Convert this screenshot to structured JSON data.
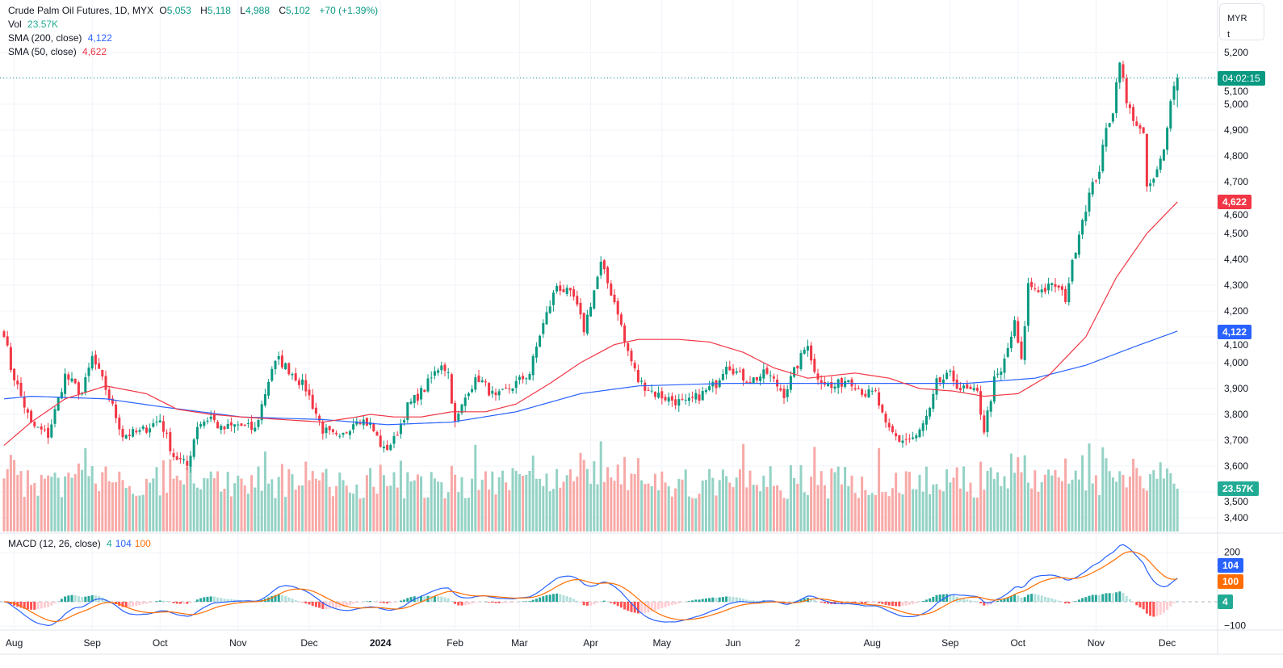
{
  "header": {
    "symbol": "Crude Palm Oil Futures, 1D, MYX",
    "open_label": "O",
    "open": "5,053",
    "high_label": "H",
    "high": "5,118",
    "low_label": "L",
    "low": "4,988",
    "close_label": "C",
    "close": "5,102",
    "change": "+70 (+1.39%)"
  },
  "volume": {
    "label": "Vol",
    "value": "23.57K"
  },
  "sma200": {
    "label": "SMA (200, close)",
    "value": "4,122"
  },
  "sma50": {
    "label": "SMA (50, close)",
    "value": "4,622"
  },
  "macd": {
    "label": "MACD (12, 26, close)",
    "hist": "4",
    "macd": "104",
    "signal": "100"
  },
  "currency": {
    "code": "MYR",
    "unit": "t"
  },
  "countdown": "04:02:15",
  "colors": {
    "up": "#089981",
    "down": "#f23645",
    "sma200": "#2962ff",
    "sma50": "#f23645",
    "macd": "#2962ff",
    "signal": "#ff6d00"
  },
  "chart_data": {
    "type": "candlestick",
    "title": "Crude Palm Oil Futures, 1D, MYX",
    "ylim": [
      3350,
      5300
    ],
    "y_ticks": [
      3400,
      3500,
      3600,
      3700,
      3800,
      3900,
      4000,
      4100,
      4200,
      4300,
      4400,
      4500,
      4600,
      4700,
      4800,
      4900,
      5000,
      5100,
      5200
    ],
    "macd_ticks": [
      200,
      -100
    ],
    "x_ticks": [
      {
        "day": 3,
        "label": "Aug"
      },
      {
        "day": 26,
        "label": "Sep"
      },
      {
        "day": 46,
        "label": "Oct"
      },
      {
        "day": 69,
        "label": "Nov"
      },
      {
        "day": 90,
        "label": "Dec"
      },
      {
        "day": 111,
        "label": "2024",
        "bold": true
      },
      {
        "day": 133,
        "label": "Feb"
      },
      {
        "day": 152,
        "label": "Mar"
      },
      {
        "day": 173,
        "label": "Apr"
      },
      {
        "day": 194,
        "label": "May"
      },
      {
        "day": 215,
        "label": "Jun"
      },
      {
        "day": 234,
        "label": "2"
      },
      {
        "day": 256,
        "label": "Aug"
      },
      {
        "day": 279,
        "label": "Sep"
      },
      {
        "day": 299,
        "label": "Oct"
      },
      {
        "day": 322,
        "label": "Nov"
      },
      {
        "day": 343,
        "label": "Dec"
      }
    ],
    "close_anchors": [
      [
        0,
        4120
      ],
      [
        2,
        3980
      ],
      [
        8,
        3760
      ],
      [
        13,
        3720
      ],
      [
        18,
        3950
      ],
      [
        23,
        3880
      ],
      [
        26,
        4020
      ],
      [
        30,
        3900
      ],
      [
        35,
        3720
      ],
      [
        40,
        3730
      ],
      [
        46,
        3780
      ],
      [
        50,
        3640
      ],
      [
        54,
        3600
      ],
      [
        57,
        3760
      ],
      [
        61,
        3790
      ],
      [
        64,
        3740
      ],
      [
        69,
        3760
      ],
      [
        74,
        3740
      ],
      [
        79,
        3980
      ],
      [
        81,
        4010
      ],
      [
        85,
        3960
      ],
      [
        89,
        3900
      ],
      [
        94,
        3740
      ],
      [
        99,
        3700
      ],
      [
        104,
        3790
      ],
      [
        108,
        3760
      ],
      [
        112,
        3660
      ],
      [
        115,
        3700
      ],
      [
        119,
        3830
      ],
      [
        124,
        3900
      ],
      [
        129,
        4000
      ],
      [
        131,
        3960
      ],
      [
        133,
        3760
      ],
      [
        137,
        3900
      ],
      [
        140,
        3940
      ],
      [
        145,
        3860
      ],
      [
        150,
        3910
      ],
      [
        155,
        3960
      ],
      [
        158,
        4110
      ],
      [
        163,
        4300
      ],
      [
        168,
        4250
      ],
      [
        171,
        4130
      ],
      [
        176,
        4380
      ],
      [
        181,
        4200
      ],
      [
        183,
        4080
      ],
      [
        187,
        3930
      ],
      [
        192,
        3880
      ],
      [
        196,
        3860
      ],
      [
        201,
        3840
      ],
      [
        206,
        3880
      ],
      [
        210,
        3920
      ],
      [
        213,
        4000
      ],
      [
        217,
        3950
      ],
      [
        220,
        3930
      ],
      [
        225,
        3960
      ],
      [
        230,
        3880
      ],
      [
        235,
        4020
      ],
      [
        237,
        4080
      ],
      [
        239,
        3960
      ],
      [
        244,
        3900
      ],
      [
        249,
        3940
      ],
      [
        254,
        3880
      ],
      [
        257,
        3880
      ],
      [
        260,
        3750
      ],
      [
        264,
        3700
      ],
      [
        269,
        3710
      ],
      [
        273,
        3810
      ],
      [
        275,
        3920
      ],
      [
        279,
        3950
      ],
      [
        282,
        3900
      ],
      [
        287,
        3880
      ],
      [
        289,
        3740
      ],
      [
        292,
        3930
      ],
      [
        294,
        3960
      ],
      [
        298,
        4150
      ],
      [
        300,
        4000
      ],
      [
        302,
        4300
      ],
      [
        306,
        4280
      ],
      [
        310,
        4300
      ],
      [
        313,
        4250
      ],
      [
        317,
        4510
      ],
      [
        320,
        4650
      ],
      [
        323,
        4750
      ],
      [
        325,
        4900
      ],
      [
        327,
        4980
      ],
      [
        329,
        5180
      ],
      [
        331,
        5000
      ],
      [
        333,
        4950
      ],
      [
        336,
        4870
      ],
      [
        337,
        4680
      ],
      [
        339,
        4700
      ],
      [
        342,
        4820
      ],
      [
        344,
        5030
      ],
      [
        346,
        5102
      ]
    ],
    "sma200": [
      [
        0,
        3860
      ],
      [
        8,
        3870
      ],
      [
        30,
        3860
      ],
      [
        46,
        3830
      ],
      [
        70,
        3790
      ],
      [
        94,
        3780
      ],
      [
        113,
        3760
      ],
      [
        132,
        3770
      ],
      [
        151,
        3810
      ],
      [
        170,
        3880
      ],
      [
        187,
        3910
      ],
      [
        213,
        3920
      ],
      [
        237,
        3920
      ],
      [
        261,
        3920
      ],
      [
        284,
        3920
      ],
      [
        304,
        3940
      ],
      [
        319,
        3990
      ],
      [
        333,
        4060
      ],
      [
        346,
        4122
      ]
    ],
    "sma50": [
      [
        0,
        3680
      ],
      [
        8,
        3770
      ],
      [
        18,
        3860
      ],
      [
        30,
        3910
      ],
      [
        42,
        3880
      ],
      [
        51,
        3820
      ],
      [
        61,
        3800
      ],
      [
        70,
        3790
      ],
      [
        82,
        3780
      ],
      [
        94,
        3770
      ],
      [
        104,
        3790
      ],
      [
        108,
        3800
      ],
      [
        115,
        3790
      ],
      [
        123,
        3790
      ],
      [
        132,
        3810
      ],
      [
        142,
        3810
      ],
      [
        151,
        3840
      ],
      [
        161,
        3920
      ],
      [
        170,
        4000
      ],
      [
        180,
        4070
      ],
      [
        187,
        4090
      ],
      [
        199,
        4090
      ],
      [
        208,
        4080
      ],
      [
        218,
        4040
      ],
      [
        227,
        3980
      ],
      [
        237,
        3940
      ],
      [
        251,
        3960
      ],
      [
        261,
        3940
      ],
      [
        270,
        3900
      ],
      [
        280,
        3890
      ],
      [
        289,
        3870
      ],
      [
        299,
        3880
      ],
      [
        308,
        3950
      ],
      [
        319,
        4100
      ],
      [
        328,
        4330
      ],
      [
        337,
        4500
      ],
      [
        346,
        4622
      ]
    ],
    "last_volume_k": 23.57
  }
}
